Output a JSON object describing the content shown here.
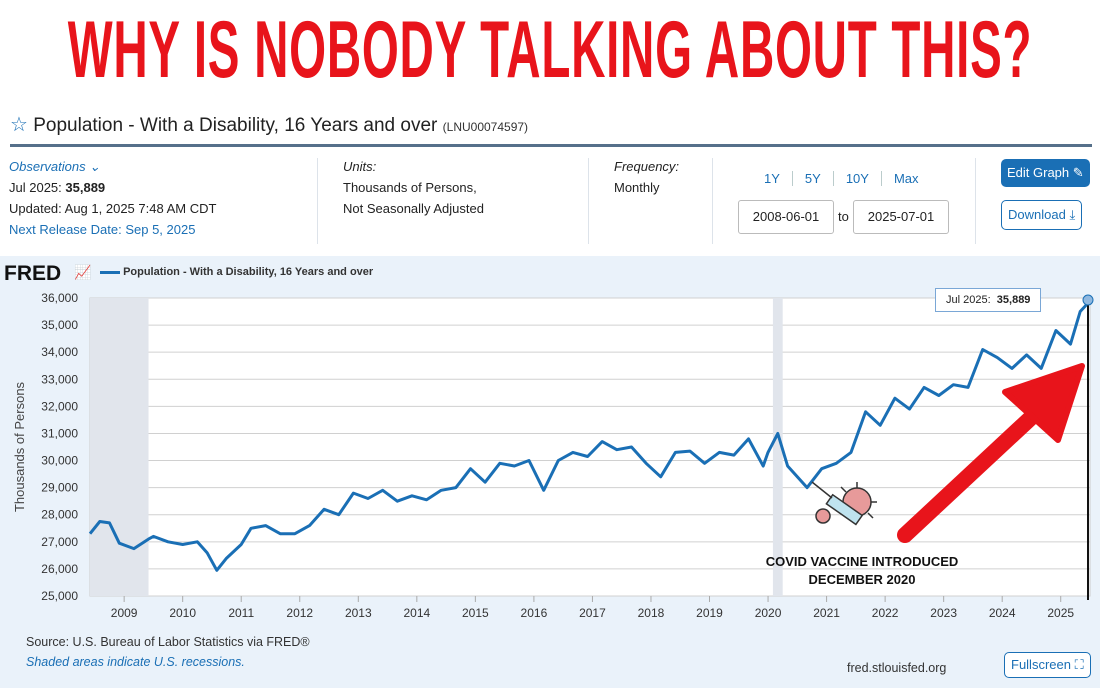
{
  "headline": "WHY IS NOBODY TALKING ABOUT THIS?",
  "header": {
    "title": "Population - With a Disability, 16 Years and over",
    "series_id": "(LNU00074597)"
  },
  "info": {
    "observations_label": "Observations",
    "latest_label": "Jul 2025:",
    "latest_value": "35,889",
    "updated": "Updated: Aug 1, 2025 7:48 AM CDT",
    "next_release": "Next Release Date: Sep 5, 2025",
    "units_label": "Units:",
    "units_1": "Thousands of Persons,",
    "units_2": "Not Seasonally Adjusted",
    "frequency_label": "Frequency:",
    "frequency": "Monthly"
  },
  "range": {
    "buttons": [
      "1Y",
      "5Y",
      "10Y",
      "Max"
    ],
    "start": "2008-06-01",
    "to": "to",
    "end": "2025-07-01"
  },
  "actions": {
    "edit": "Edit Graph",
    "download": "Download"
  },
  "fred": {
    "logo": "FRED",
    "legend": "Population - With a Disability, 16 Years and over",
    "tooltip_label": "Jul 2025:",
    "tooltip_value": "35,889"
  },
  "annotation": {
    "line1": "COVID VACCINE INTRODUCED",
    "line2": "DECEMBER 2020"
  },
  "footer": {
    "source": "Source: U.S. Bureau of Labor Statistics via FRED®",
    "shaded": "Shaded areas indicate U.S. recessions.",
    "site": "fred.stlouisfed.org",
    "fullscreen": "Fullscreen"
  },
  "colors": {
    "line": "#1a6fb5",
    "headline": "#e8141b",
    "arrow": "#e8141b",
    "recession": "#e1e5ec"
  },
  "chart_data": {
    "type": "line",
    "ylabel": "Thousands of Persons",
    "ylim": [
      25000,
      36000
    ],
    "yticks": [
      25000,
      26000,
      27000,
      28000,
      29000,
      30000,
      31000,
      32000,
      33000,
      34000,
      35000,
      36000
    ],
    "xticks": [
      "2009",
      "2010",
      "2011",
      "2012",
      "2013",
      "2014",
      "2015",
      "2016",
      "2017",
      "2018",
      "2019",
      "2020",
      "2021",
      "2022",
      "2023",
      "2024",
      "2025"
    ],
    "xlim": [
      "2008-06",
      "2025-07"
    ],
    "grid": true,
    "recessions": [
      [
        "2008-06",
        "2009-06"
      ],
      [
        "2020-02",
        "2020-04"
      ]
    ],
    "series": [
      {
        "name": "Population - With a Disability, 16 Years and over",
        "points": [
          [
            "2008-06",
            27300
          ],
          [
            "2008-08",
            27750
          ],
          [
            "2008-10",
            27700
          ],
          [
            "2008-12",
            26950
          ],
          [
            "2009-03",
            26750
          ],
          [
            "2009-06",
            27100
          ],
          [
            "2009-07",
            27200
          ],
          [
            "2009-10",
            27000
          ],
          [
            "2010-01",
            26900
          ],
          [
            "2010-04",
            27000
          ],
          [
            "2010-06",
            26600
          ],
          [
            "2010-08",
            25950
          ],
          [
            "2010-10",
            26400
          ],
          [
            "2011-01",
            26900
          ],
          [
            "2011-03",
            27500
          ],
          [
            "2011-06",
            27600
          ],
          [
            "2011-09",
            27300
          ],
          [
            "2011-12",
            27300
          ],
          [
            "2012-03",
            27600
          ],
          [
            "2012-06",
            28200
          ],
          [
            "2012-09",
            28000
          ],
          [
            "2012-12",
            28800
          ],
          [
            "2013-03",
            28600
          ],
          [
            "2013-06",
            28900
          ],
          [
            "2013-09",
            28500
          ],
          [
            "2013-12",
            28700
          ],
          [
            "2014-03",
            28550
          ],
          [
            "2014-06",
            28900
          ],
          [
            "2014-09",
            29000
          ],
          [
            "2014-12",
            29700
          ],
          [
            "2015-03",
            29200
          ],
          [
            "2015-06",
            29900
          ],
          [
            "2015-09",
            29800
          ],
          [
            "2015-12",
            30000
          ],
          [
            "2016-03",
            28900
          ],
          [
            "2016-06",
            30000
          ],
          [
            "2016-09",
            30300
          ],
          [
            "2016-12",
            30150
          ],
          [
            "2017-03",
            30700
          ],
          [
            "2017-06",
            30400
          ],
          [
            "2017-09",
            30500
          ],
          [
            "2017-12",
            29900
          ],
          [
            "2018-03",
            29400
          ],
          [
            "2018-06",
            30300
          ],
          [
            "2018-09",
            30350
          ],
          [
            "2018-12",
            29900
          ],
          [
            "2019-03",
            30300
          ],
          [
            "2019-06",
            30200
          ],
          [
            "2019-09",
            30800
          ],
          [
            "2019-12",
            29800
          ],
          [
            "2020-01",
            30300
          ],
          [
            "2020-03",
            31000
          ],
          [
            "2020-05",
            29800
          ],
          [
            "2020-09",
            29000
          ],
          [
            "2020-12",
            29700
          ],
          [
            "2021-03",
            29900
          ],
          [
            "2021-06",
            30300
          ],
          [
            "2021-09",
            31800
          ],
          [
            "2021-12",
            31300
          ],
          [
            "2022-03",
            32300
          ],
          [
            "2022-06",
            31900
          ],
          [
            "2022-09",
            32700
          ],
          [
            "2022-12",
            32400
          ],
          [
            "2023-03",
            32800
          ],
          [
            "2023-06",
            32700
          ],
          [
            "2023-09",
            34100
          ],
          [
            "2023-12",
            33800
          ],
          [
            "2024-03",
            33400
          ],
          [
            "2024-06",
            33900
          ],
          [
            "2024-09",
            33400
          ],
          [
            "2024-12",
            34800
          ],
          [
            "2025-03",
            34300
          ],
          [
            "2025-05",
            35500
          ],
          [
            "2025-07",
            35889
          ]
        ]
      }
    ]
  }
}
